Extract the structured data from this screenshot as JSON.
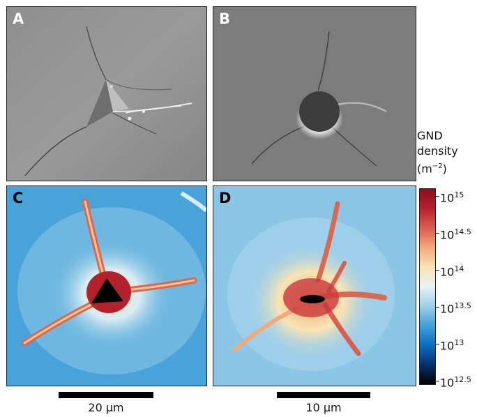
{
  "panels": {
    "a": {
      "label": "A"
    },
    "b": {
      "label": "B"
    },
    "c": {
      "label": "C"
    },
    "d": {
      "label": "D"
    }
  },
  "scalebars": {
    "left": {
      "text": "20 µm"
    },
    "right": {
      "text": "10 µm"
    }
  },
  "colorbar": {
    "title_line1": "GND",
    "title_line2": "density",
    "unit_base": "(m",
    "unit_exp": "−2",
    "unit_close": ")",
    "ticks": [
      {
        "base": "10",
        "exp": "15"
      },
      {
        "base": "10",
        "exp": "14.5"
      },
      {
        "base": "10",
        "exp": "14"
      },
      {
        "base": "10",
        "exp": "13.5"
      },
      {
        "base": "10",
        "exp": "13"
      },
      {
        "base": "10",
        "exp": "12.5"
      }
    ],
    "colors": [
      "#000000",
      "#08306b",
      "#0a6ec1",
      "#43a0d8",
      "#9cd0ea",
      "#e9f1f4",
      "#f8e4b4",
      "#f3a97a",
      "#db5e53",
      "#b3222c",
      "#8e0c1c"
    ]
  }
}
